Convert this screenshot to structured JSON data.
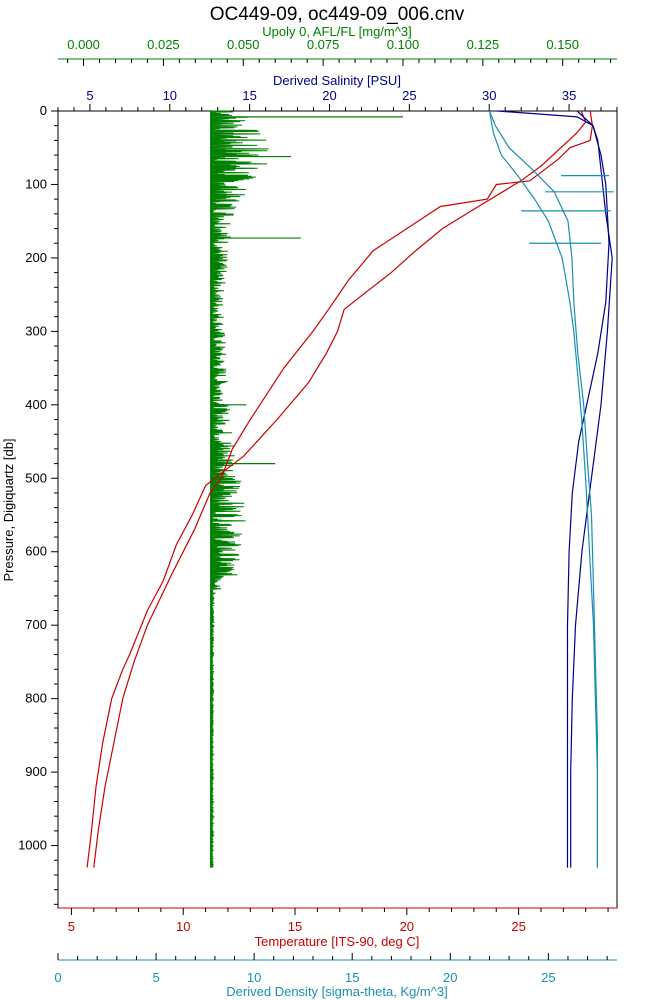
{
  "chart_data": {
    "type": "line",
    "title": "OC449-09, oc449-09_006.cnv",
    "background": "#ffffff",
    "axes": {
      "pressure": {
        "label": "Pressure, Digiquartz [db]",
        "range": [
          0,
          1085
        ],
        "ticks": [
          0,
          100,
          200,
          300,
          400,
          500,
          600,
          700,
          800,
          900,
          1000
        ],
        "inverted": true,
        "color": "#000000"
      },
      "fluorescence": {
        "label": "Upoly 0, AFL/FL [mg/m^3]",
        "range": [
          -0.008,
          0.167
        ],
        "ticks": [
          "0.000",
          "0.025",
          "0.050",
          "0.075",
          "0.100",
          "0.125",
          "0.150"
        ],
        "position": "top",
        "color": "#008000"
      },
      "salinity": {
        "label": "Derived Salinity [PSU]",
        "range": [
          3.0,
          38.0
        ],
        "ticks": [
          5,
          10,
          15,
          20,
          25,
          30,
          35
        ],
        "position": "top",
        "color": "#00008b"
      },
      "temperature": {
        "label": "Temperature [ITS-90, deg C]",
        "range": [
          4.4,
          29.4
        ],
        "ticks": [
          5,
          10,
          15,
          20,
          25
        ],
        "position": "bottom",
        "color": "#cc0000"
      },
      "density": {
        "label": "Derived Density [sigma-theta, Kg/m^3]",
        "range": [
          0,
          28.5
        ],
        "ticks": [
          0,
          5,
          10,
          15,
          20,
          25
        ],
        "position": "bottom",
        "color": "#1a8fb0"
      }
    },
    "series": [
      {
        "axis": "temperature",
        "color": "#cc0000",
        "points": [
          [
            28.2,
            0
          ],
          [
            28.3,
            20
          ],
          [
            28.2,
            40
          ],
          [
            27.3,
            50
          ],
          [
            26.8,
            65
          ],
          [
            25.5,
            95
          ],
          [
            24.0,
            100
          ],
          [
            23.6,
            120
          ],
          [
            21.5,
            130
          ],
          [
            20.5,
            150
          ],
          [
            18.5,
            190
          ],
          [
            17.4,
            230
          ],
          [
            16.5,
            270
          ],
          [
            15.8,
            300
          ],
          [
            14.5,
            350
          ],
          [
            13.0,
            420
          ],
          [
            12.2,
            460
          ],
          [
            11.7,
            500
          ],
          [
            11.2,
            520
          ],
          [
            10.5,
            570
          ],
          [
            9.5,
            630
          ],
          [
            8.4,
            700
          ],
          [
            7.8,
            750
          ],
          [
            7.3,
            800
          ],
          [
            6.9,
            860
          ],
          [
            6.5,
            920
          ],
          [
            6.2,
            980
          ],
          [
            6.0,
            1030
          ]
        ]
      },
      {
        "axis": "temperature",
        "color": "#cc0000",
        "points": [
          [
            27.8,
            0
          ],
          [
            28.0,
            15
          ],
          [
            27.6,
            30
          ],
          [
            26.0,
            75
          ],
          [
            25.1,
            95
          ],
          [
            23.2,
            130
          ],
          [
            21.6,
            160
          ],
          [
            20.4,
            190
          ],
          [
            19.3,
            220
          ],
          [
            17.2,
            270
          ],
          [
            16.9,
            300
          ],
          [
            16.4,
            330
          ],
          [
            15.6,
            370
          ],
          [
            14.2,
            420
          ],
          [
            12.7,
            470
          ],
          [
            11.4,
            500
          ],
          [
            11.0,
            510
          ],
          [
            10.4,
            550
          ],
          [
            9.7,
            590
          ],
          [
            9.1,
            640
          ],
          [
            8.4,
            680
          ],
          [
            7.6,
            740
          ],
          [
            7.3,
            760
          ],
          [
            6.8,
            800
          ],
          [
            6.4,
            860
          ],
          [
            6.1,
            920
          ],
          [
            5.9,
            980
          ],
          [
            5.7,
            1030
          ]
        ]
      },
      {
        "axis": "salinity",
        "color": "#00008b",
        "points": [
          [
            30.5,
            0
          ],
          [
            33,
            4
          ],
          [
            35.5,
            8
          ],
          [
            36.5,
            20
          ],
          [
            36.8,
            40
          ],
          [
            37.0,
            80
          ],
          [
            37.3,
            140
          ],
          [
            37.7,
            200
          ],
          [
            37.4,
            300
          ],
          [
            37.0,
            400
          ],
          [
            36.4,
            500
          ],
          [
            35.8,
            600
          ],
          [
            35.4,
            700
          ],
          [
            35.2,
            800
          ],
          [
            35.1,
            900
          ],
          [
            35.1,
            1030
          ]
        ]
      },
      {
        "axis": "salinity",
        "color": "#00008b",
        "points": [
          [
            35.5,
            0
          ],
          [
            36.5,
            20
          ],
          [
            37.0,
            60
          ],
          [
            37.3,
            100
          ],
          [
            37.5,
            180
          ],
          [
            37.3,
            260
          ],
          [
            36.8,
            330
          ],
          [
            36.1,
            400
          ],
          [
            35.6,
            450
          ],
          [
            35.2,
            520
          ],
          [
            35.0,
            600
          ],
          [
            34.9,
            700
          ],
          [
            34.9,
            800
          ],
          [
            34.9,
            900
          ],
          [
            34.9,
            1030
          ]
        ]
      },
      {
        "axis": "density",
        "color": "#1a8fb0",
        "points": [
          [
            22.0,
            0
          ],
          [
            22.2,
            30
          ],
          [
            22.6,
            60
          ],
          [
            23.5,
            90
          ],
          [
            24.3,
            120
          ],
          [
            25.0,
            150
          ],
          [
            25.7,
            200
          ],
          [
            26.1,
            260
          ],
          [
            26.3,
            300
          ],
          [
            26.5,
            360
          ],
          [
            26.7,
            420
          ],
          [
            26.9,
            500
          ],
          [
            27.1,
            600
          ],
          [
            27.3,
            700
          ],
          [
            27.4,
            800
          ],
          [
            27.5,
            900
          ],
          [
            27.5,
            1030
          ]
        ]
      },
      {
        "axis": "density",
        "color": "#1a8fb0",
        "points": [
          [
            22.0,
            0
          ],
          [
            22.3,
            20
          ],
          [
            23.0,
            50
          ],
          [
            24.2,
            80
          ],
          [
            25.3,
            110
          ],
          [
            26.0,
            150
          ],
          [
            26.2,
            200
          ],
          [
            26.3,
            260
          ],
          [
            26.5,
            330
          ],
          [
            26.8,
            400
          ],
          [
            27.0,
            480
          ],
          [
            27.2,
            550
          ],
          [
            27.3,
            650
          ],
          [
            27.4,
            750
          ],
          [
            27.5,
            850
          ],
          [
            27.5,
            950
          ],
          [
            27.5,
            1030
          ]
        ]
      }
    ],
    "fluorescence_profile": {
      "axis": "fluorescence",
      "color": "#008000",
      "baseline": 0.04,
      "envelope": [
        [
          0,
          0.052
        ],
        [
          25,
          0.055
        ],
        [
          55,
          0.06
        ],
        [
          75,
          0.058
        ],
        [
          100,
          0.052
        ],
        [
          130,
          0.049
        ],
        [
          180,
          0.046
        ],
        [
          250,
          0.044
        ],
        [
          350,
          0.045
        ],
        [
          420,
          0.046
        ],
        [
          480,
          0.049
        ],
        [
          550,
          0.051
        ],
        [
          640,
          0.048
        ],
        [
          660,
          0.041
        ],
        [
          1030,
          0.0405
        ]
      ],
      "spikes": [
        [
          8,
          0.1
        ],
        [
          62,
          0.065
        ],
        [
          173,
          0.068
        ],
        [
          480,
          0.06
        ],
        [
          400,
          0.051
        ]
      ]
    },
    "salinity_spikes": [
      [
        88,
        34.5,
        37.5
      ],
      [
        110,
        33.5,
        37.8
      ],
      [
        136,
        32.0,
        37.6
      ],
      [
        180,
        32.5,
        37.0
      ]
    ]
  }
}
